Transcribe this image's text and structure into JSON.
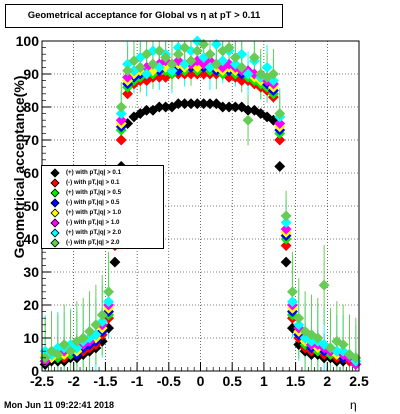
{
  "title": "Geometrical acceptance for Global vs  η at pT > 0.11",
  "datestamp": "Mon Jun 11 09:22:41 2018",
  "chart_data": {
    "type": "scatter",
    "title": "Geometrical acceptance for Global vs  η at pT > 0.11",
    "xlabel": "η",
    "ylabel": "Geometrical acceptance(%)",
    "xlim": [
      -2.5,
      2.5
    ],
    "ylim": [
      0,
      100
    ],
    "x_ticks": [
      "-2.5",
      "-2",
      "-1.5",
      "-1",
      "-0.5",
      "0",
      "0.5",
      "1",
      "1.5",
      "2",
      "2.5"
    ],
    "y_ticks": [
      "0",
      "10",
      "20",
      "30",
      "40",
      "50",
      "60",
      "70",
      "80",
      "90",
      "100"
    ],
    "grid": true,
    "legend_position": "left-middle",
    "x": [
      -2.45,
      -2.35,
      -2.25,
      -2.15,
      -2.05,
      -1.95,
      -1.85,
      -1.75,
      -1.65,
      -1.55,
      -1.45,
      -1.35,
      -1.25,
      -1.15,
      -1.05,
      -0.95,
      -0.85,
      -0.75,
      -0.65,
      -0.55,
      -0.45,
      -0.35,
      -0.25,
      -0.15,
      -0.05,
      0.05,
      0.15,
      0.25,
      0.35,
      0.45,
      0.55,
      0.65,
      0.75,
      0.85,
      0.95,
      1.05,
      1.15,
      1.25,
      1.35,
      1.45,
      1.55,
      1.65,
      1.75,
      1.85,
      1.95,
      2.05,
      2.15,
      2.25,
      2.35,
      2.45
    ],
    "series": [
      {
        "name": "(+) with pT,|q| > 0.1",
        "color": "#000000",
        "values": [
          2,
          3,
          3,
          3,
          4,
          4,
          5,
          6,
          7,
          9,
          13,
          33,
          62,
          75,
          77,
          78,
          79,
          79,
          80,
          80,
          80,
          81,
          81,
          81,
          81,
          81,
          81,
          81,
          80,
          80,
          80,
          80,
          79,
          79,
          78,
          77,
          76,
          62,
          33,
          13,
          8,
          6,
          5,
          5,
          4,
          4,
          3,
          3,
          3,
          2
        ]
      },
      {
        "name": "(-) with pT,|q| > 0.1",
        "color": "#ff0000",
        "values": [
          3,
          4,
          4,
          4,
          5,
          5,
          6,
          7,
          8,
          11,
          16,
          38,
          70,
          84,
          87,
          88,
          88,
          89,
          89,
          89,
          90,
          90,
          90,
          90,
          90,
          90,
          90,
          90,
          90,
          89,
          89,
          88,
          88,
          87,
          86,
          85,
          83,
          70,
          38,
          16,
          10,
          7,
          6,
          6,
          5,
          5,
          4,
          4,
          3,
          2
        ]
      },
      {
        "name": "(+) with pT,|q| > 0.5",
        "color": "#00ee00",
        "values": [
          4,
          5,
          4,
          6,
          5,
          6,
          7,
          8,
          9,
          12,
          17,
          40,
          73,
          86,
          88,
          89,
          90,
          90,
          91,
          91,
          90,
          92,
          91,
          92,
          91,
          92,
          91,
          91,
          90,
          91,
          90,
          90,
          89,
          88,
          87,
          86,
          84,
          72,
          40,
          17,
          11,
          8,
          7,
          6,
          6,
          5,
          5,
          4,
          4,
          3
        ]
      },
      {
        "name": "(-) with pT,|q| > 0.5",
        "color": "#0000ff",
        "values": [
          3,
          4,
          5,
          5,
          6,
          5,
          7,
          8,
          9,
          12,
          18,
          41,
          74,
          87,
          89,
          90,
          90,
          91,
          91,
          92,
          92,
          91,
          92,
          92,
          92,
          92,
          92,
          91,
          91,
          91,
          91,
          90,
          90,
          89,
          88,
          87,
          85,
          73,
          41,
          18,
          11,
          9,
          7,
          7,
          6,
          6,
          5,
          4,
          4,
          2
        ]
      },
      {
        "name": "(+) with pT,|q| > 1.0",
        "color": "#ffff00",
        "values": [
          5,
          4,
          6,
          5,
          7,
          6,
          8,
          9,
          10,
          13,
          19,
          42,
          75,
          88,
          90,
          91,
          92,
          91,
          93,
          92,
          91,
          93,
          92,
          94,
          92,
          93,
          93,
          92,
          91,
          92,
          91,
          92,
          90,
          89,
          88,
          88,
          86,
          74,
          42,
          19,
          12,
          9,
          8,
          7,
          7,
          6,
          5,
          5,
          4,
          3
        ]
      },
      {
        "name": "(-) with pT,|q| > 1.0",
        "color": "#ff00ff",
        "values": [
          3,
          5,
          6,
          6,
          7,
          7,
          8,
          9,
          11,
          14,
          20,
          43,
          76,
          89,
          91,
          92,
          92,
          93,
          93,
          94,
          93,
          94,
          93,
          93,
          94,
          93,
          94,
          93,
          92,
          93,
          92,
          91,
          91,
          90,
          89,
          88,
          87,
          75,
          43,
          20,
          13,
          10,
          8,
          8,
          7,
          6,
          6,
          5,
          4,
          2
        ]
      },
      {
        "name": "(+) with pT,|q| > 2.0",
        "color": "#00ffff",
        "values": [
          6,
          5,
          7,
          7,
          8,
          7,
          9,
          10,
          11,
          15,
          21,
          45,
          78,
          93,
          91,
          95,
          90,
          97,
          92,
          96,
          91,
          98,
          93,
          97,
          100,
          95,
          92,
          99,
          94,
          97,
          93,
          96,
          90,
          94,
          89,
          92,
          88,
          77,
          45,
          21,
          14,
          10,
          9,
          9,
          8,
          7,
          6,
          6,
          5,
          3
        ]
      },
      {
        "name": "(-) with pT,|q| > 2.0",
        "color": "#66cc55",
        "values": [
          4,
          6,
          5,
          8,
          6,
          9,
          10,
          12,
          14,
          17,
          24,
          47,
          80,
          91,
          94,
          92,
          96,
          93,
          97,
          95,
          93,
          96,
          98,
          94,
          97,
          99,
          96,
          93,
          97,
          98,
          95,
          92,
          76,
          95,
          90,
          89,
          90,
          78,
          47,
          24,
          16,
          12,
          11,
          10,
          26,
          7,
          9,
          8,
          5,
          4
        ]
      }
    ]
  }
}
